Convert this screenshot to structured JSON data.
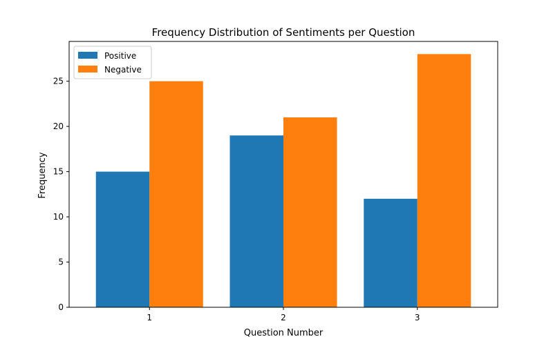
{
  "chart_data": {
    "type": "bar",
    "title": "Frequency Distribution of Sentiments per Question",
    "xlabel": "Question Number",
    "ylabel": "Frequency",
    "categories": [
      "1",
      "2",
      "3"
    ],
    "series": [
      {
        "name": "Positive",
        "values": [
          15,
          19,
          12
        ],
        "color": "#1f77b4"
      },
      {
        "name": "Negative",
        "values": [
          25,
          21,
          28
        ],
        "color": "#ff7f0e"
      }
    ],
    "yticks": [
      0,
      5,
      10,
      15,
      20,
      25
    ],
    "ylim": [
      0,
      29.4
    ],
    "grid": false,
    "legend_position": "top-left"
  }
}
